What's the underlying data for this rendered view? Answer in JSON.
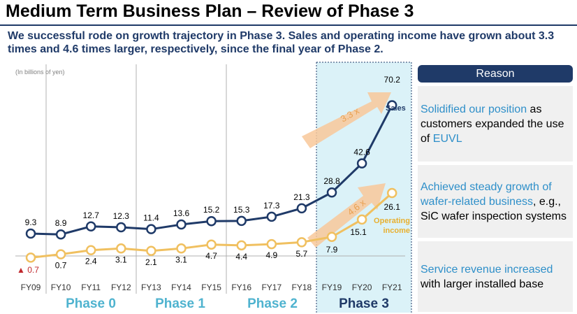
{
  "title": "Medium Term Business Plan – Review of Phase 3",
  "subtitle": "We successful rode on growth trajectory in Phase 3. Sales and operating income have grown about 3.3 times and 4.6 times larger, respectively, since the final year of Phase 2.",
  "reason": {
    "header": "Reason",
    "items": [
      {
        "parts": [
          {
            "text": "Solidified our position",
            "hl": true
          },
          {
            "text": " as customers expanded the use of ",
            "hl": false
          },
          {
            "text": "EUVL",
            "hl": true
          }
        ]
      },
      {
        "parts": [
          {
            "text": "Achieved steady growth of wafer-related business",
            "hl": true
          },
          {
            "text": ", e.g., SiC wafer inspection systems",
            "hl": false
          }
        ]
      },
      {
        "parts": [
          {
            "text": "Service revenue increased",
            "hl": true
          },
          {
            "text": " with larger installed base",
            "hl": false
          }
        ]
      }
    ]
  },
  "colors": {
    "sales": "#1f3a68",
    "operating": "#f0c060",
    "operating_label": "#e8b030",
    "phase_label": "#4fb3cf",
    "phase3_bg": "#dbf2f8",
    "negative": "#c0282d",
    "arrow": "#f8c89a"
  },
  "chart_data": {
    "type": "line",
    "unit_note": "(In billions of yen)",
    "categories": [
      "FY09",
      "FY10",
      "FY11",
      "FY12",
      "FY13",
      "FY14",
      "FY15",
      "FY16",
      "FY17",
      "FY18",
      "FY19",
      "FY20",
      "FY21"
    ],
    "series": [
      {
        "name": "Sales",
        "values": [
          9.3,
          8.9,
          12.7,
          12.3,
          11.4,
          13.6,
          15.2,
          15.3,
          17.3,
          21.3,
          28.8,
          42.6,
          70.2
        ],
        "labels": [
          "9.3",
          "8.9",
          "12.7",
          "12.3",
          "11.4",
          "13.6",
          "15.2",
          "15.3",
          "17.3",
          "21.3",
          "28.8",
          "42.6",
          "70.2"
        ]
      },
      {
        "name": "Operating income",
        "values": [
          -0.7,
          0.7,
          2.4,
          3.1,
          2.1,
          3.1,
          4.7,
          4.4,
          4.9,
          5.7,
          7.9,
          15.1,
          26.1
        ],
        "labels": [
          "▲ 0.7",
          "0.7",
          "2.4",
          "3.1",
          "2.1",
          "3.1",
          "4.7",
          "4.4",
          "4.9",
          "5.7",
          "7.9",
          "15.1",
          "26.1"
        ]
      }
    ],
    "phases": [
      {
        "name": "Phase 0",
        "from": 0,
        "to": 3
      },
      {
        "name": "Phase 1",
        "from": 4,
        "to": 6
      },
      {
        "name": "Phase 2",
        "from": 7,
        "to": 9
      },
      {
        "name": "Phase 3",
        "from": 10,
        "to": 12
      }
    ],
    "annotations": [
      "3.3 x",
      "4.6 x"
    ],
    "series_labels": [
      "Sales",
      "Operating\nincome"
    ]
  }
}
